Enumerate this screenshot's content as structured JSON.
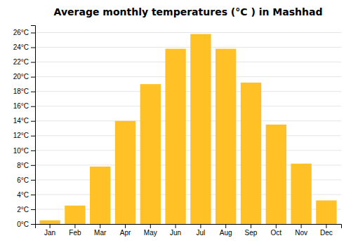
{
  "chart_data": {
    "type": "bar",
    "title": "Average monthly temperatures (°C ) in Mashhad",
    "categories": [
      "Jan",
      "Feb",
      "Mar",
      "Apr",
      "May",
      "Jun",
      "Jul",
      "Aug",
      "Sep",
      "Oct",
      "Nov",
      "Dec"
    ],
    "values": [
      0.5,
      2.5,
      7.8,
      14.0,
      19.0,
      23.8,
      25.8,
      23.8,
      19.2,
      13.5,
      8.2,
      3.2
    ],
    "color": "#FFC125",
    "ylim": [
      0,
      27
    ],
    "yticks": [
      {
        "value": 0,
        "label": "0°C"
      },
      {
        "value": 2,
        "label": "2°C"
      },
      {
        "value": 4,
        "label": "4°C"
      },
      {
        "value": 6,
        "label": "6°C"
      },
      {
        "value": 8,
        "label": "8°C"
      },
      {
        "value": 10,
        "label": "10°C"
      },
      {
        "value": 12,
        "label": "12°C"
      },
      {
        "value": 14,
        "label": "14°C"
      },
      {
        "value": 16,
        "label": "16°C"
      },
      {
        "value": 18,
        "label": "18°C"
      },
      {
        "value": 20,
        "label": "20°C"
      },
      {
        "value": 22,
        "label": "22°C"
      },
      {
        "value": 24,
        "label": "24°C"
      },
      {
        "value": 26,
        "label": "26°C"
      }
    ],
    "grid": true
  }
}
